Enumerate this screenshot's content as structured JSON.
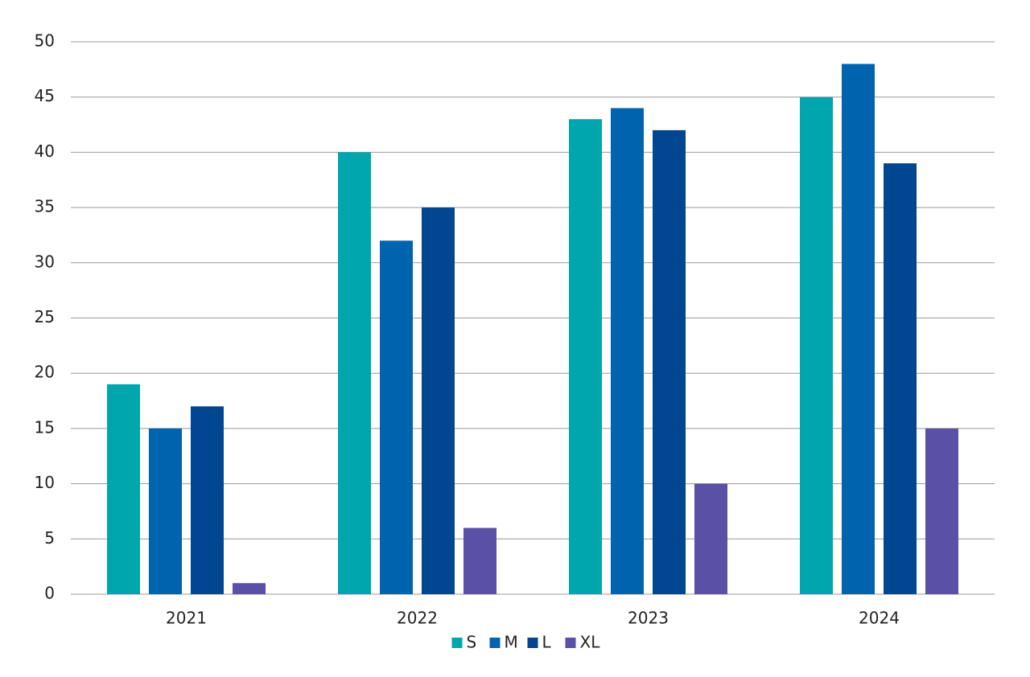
{
  "chart_data": {
    "type": "bar",
    "categories": [
      "2021",
      "2022",
      "2023",
      "2024"
    ],
    "series": [
      {
        "name": "S",
        "color": "#00a6ad",
        "values": [
          19,
          40,
          43,
          45
        ]
      },
      {
        "name": "M",
        "color": "#0063ad",
        "values": [
          15,
          32,
          44,
          48
        ]
      },
      {
        "name": "L",
        "color": "#004690",
        "values": [
          17,
          35,
          42,
          39
        ]
      },
      {
        "name": "XL",
        "color": "#5a50a6",
        "values": [
          1,
          6,
          10,
          15
        ]
      }
    ],
    "ylim": [
      0,
      50
    ],
    "yticks": [
      0,
      5,
      10,
      15,
      20,
      25,
      30,
      35,
      40,
      45,
      50
    ],
    "grid": true,
    "legend": "bottom"
  }
}
